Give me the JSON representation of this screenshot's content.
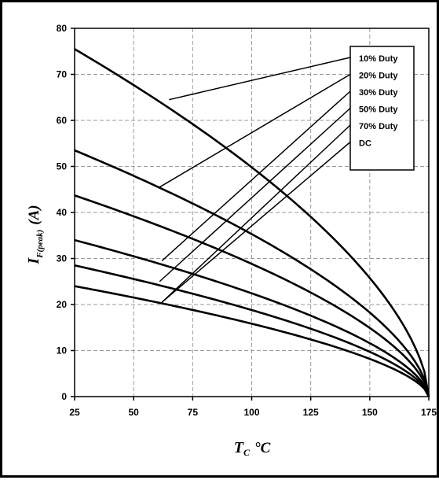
{
  "chart_data": {
    "type": "line",
    "xlabel": {
      "main": "T",
      "sub": "C",
      "unit": "°C"
    },
    "ylabel": {
      "main": "I",
      "sub": "F(peak)",
      "unit": "(A)"
    },
    "xlim": [
      25,
      175
    ],
    "ylim": [
      0,
      80
    ],
    "xticks": [
      25,
      50,
      75,
      100,
      125,
      150,
      175
    ],
    "yticks": [
      0,
      10,
      20,
      30,
      40,
      50,
      60,
      70,
      80
    ],
    "xtick_labels": [
      "25",
      "50",
      "75",
      "100",
      "125",
      "150",
      "175"
    ],
    "ytick_labels": [
      "0",
      "10",
      "20",
      "30",
      "40",
      "50",
      "60",
      "70",
      "80"
    ],
    "grid": true,
    "grid_style": "dashed",
    "legend_position": "top-right",
    "line_color": "#000000",
    "series": [
      {
        "name": "10% Duty",
        "y_at_25": 75.5,
        "end": [
          175,
          0
        ],
        "label_point": [
          65,
          64.5
        ],
        "values_x": [
          25,
          50,
          75,
          100,
          125,
          150,
          160,
          170,
          175
        ],
        "values_y": [
          75.5,
          69.3,
          61.7,
          52.2,
          40.3,
          24.7,
          16.6,
          7.4,
          0
        ]
      },
      {
        "name": "20% Duty",
        "y_at_25": 53.5,
        "end": [
          175,
          0
        ],
        "label_point": [
          61,
          45.5
        ],
        "values_x": [
          25,
          50,
          75,
          100,
          125,
          150,
          160,
          170,
          175
        ],
        "values_y": [
          53.5,
          49.1,
          43.7,
          37.0,
          28.6,
          17.5,
          11.8,
          5.2,
          0
        ]
      },
      {
        "name": "30% Duty",
        "y_at_25": 43.7,
        "end": [
          175,
          0
        ],
        "label_point": [
          62,
          29.5
        ],
        "values_x": [
          25,
          50,
          75,
          100,
          125,
          150,
          160,
          170,
          175
        ],
        "values_y": [
          43.7,
          40.1,
          35.7,
          30.2,
          23.3,
          14.3,
          9.6,
          4.3,
          0
        ]
      },
      {
        "name": "50% Duty",
        "y_at_25": 34.0,
        "end": [
          175,
          0
        ],
        "label_point": [
          61,
          25
        ],
        "values_x": [
          25,
          50,
          75,
          100,
          125,
          150,
          160,
          170,
          175
        ],
        "values_y": [
          34.0,
          31.2,
          27.8,
          23.5,
          18.1,
          11.1,
          7.5,
          3.3,
          0
        ]
      },
      {
        "name": "70% Duty",
        "y_at_25": 28.5,
        "end": [
          175,
          0
        ],
        "label_point": [
          62,
          20.5
        ],
        "values_x": [
          25,
          50,
          75,
          100,
          125,
          150,
          160,
          170,
          175
        ],
        "values_y": [
          28.5,
          26.2,
          23.3,
          19.7,
          15.2,
          9.3,
          6.3,
          2.8,
          0
        ]
      },
      {
        "name": "DC",
        "y_at_25": 24.0,
        "end": [
          175,
          0
        ],
        "label_point": [
          62,
          20.5
        ],
        "values_x": [
          25,
          50,
          75,
          100,
          125,
          150,
          160,
          170,
          175
        ],
        "values_y": [
          24.0,
          22.0,
          19.6,
          16.6,
          12.8,
          7.9,
          5.3,
          2.3,
          0
        ]
      }
    ]
  }
}
